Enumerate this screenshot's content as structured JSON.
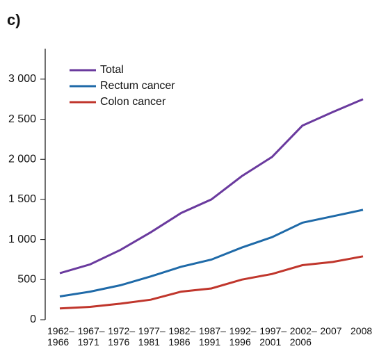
{
  "chart_data": {
    "type": "line",
    "panel_label": "c)",
    "categories": [
      "1962–\n1966",
      "1967–\n1971",
      "1972–\n1976",
      "1977–\n1981",
      "1982–\n1986",
      "1987–\n1991",
      "1992–\n1996",
      "1997–\n2001",
      "2002–\n2006",
      "2007",
      "2008"
    ],
    "series": [
      {
        "name": "Total",
        "color": "#6a3a9e",
        "values": [
          580,
          690,
          870,
          1090,
          1330,
          1500,
          1790,
          2030,
          2420,
          2590,
          2750
        ]
      },
      {
        "name": "Rectum cancer",
        "color": "#1f6aa8",
        "values": [
          290,
          350,
          430,
          540,
          660,
          750,
          900,
          1030,
          1210,
          1290,
          1370
        ]
      },
      {
        "name": "Colon cancer",
        "color": "#c0362c",
        "values": [
          140,
          160,
          200,
          250,
          350,
          390,
          500,
          570,
          680,
          720,
          790
        ]
      }
    ],
    "ylim": [
      0,
      3380
    ],
    "yticks": [
      0,
      500,
      {
        "value": 1000,
        "label": "1 000"
      },
      {
        "value": 1500,
        "label": "1 500"
      },
      {
        "value": 2000,
        "label": "2 000"
      },
      {
        "value": 2500,
        "label": "2 500"
      },
      {
        "value": 3000,
        "label": "3 000"
      }
    ],
    "legend": "top-left",
    "grid": false
  }
}
